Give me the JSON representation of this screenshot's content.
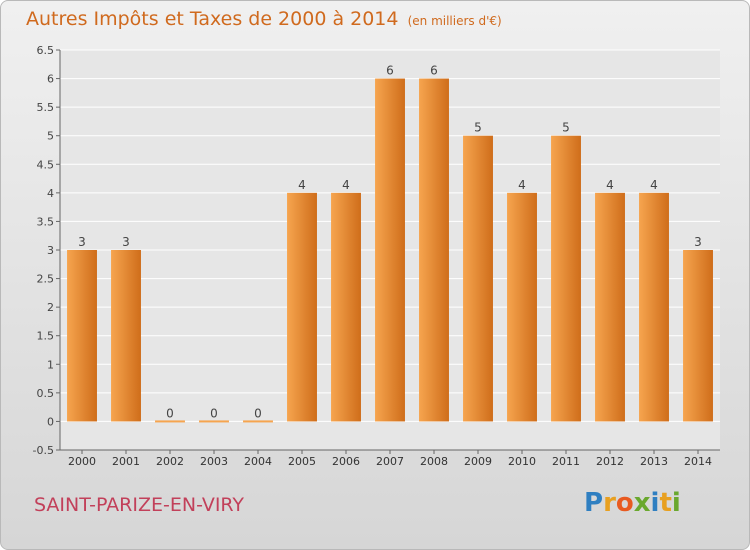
{
  "title": "Autres Impôts et Taxes de 2000 à 2014",
  "subtitle": "(en milliers d'€)",
  "commune": "SAINT-PARIZE-EN-VIRY",
  "logo": {
    "text": "Proxiti",
    "letters": [
      {
        "ch": "P",
        "color": "#2f7fc1"
      },
      {
        "ch": "r",
        "color": "#e8a020"
      },
      {
        "ch": "o",
        "color": "#e85a20"
      },
      {
        "ch": "x",
        "color": "#6aa82e"
      },
      {
        "ch": "i",
        "color": "#2f7fc1"
      },
      {
        "ch": "t",
        "color": "#e8a020"
      },
      {
        "ch": "i",
        "color": "#6aa82e"
      }
    ]
  },
  "colors": {
    "bar_light": "#f6a54f",
    "bar_dark": "#cf6d1a",
    "title": "#d06a1e",
    "commune": "#c2405a"
  },
  "chart_data": {
    "type": "bar",
    "categories": [
      "2000",
      "2001",
      "2002",
      "2003",
      "2004",
      "2005",
      "2006",
      "2007",
      "2008",
      "2009",
      "2010",
      "2011",
      "2012",
      "2013",
      "2014"
    ],
    "values": [
      3,
      3,
      0,
      0,
      0,
      4,
      4,
      6,
      6,
      5,
      4,
      5,
      4,
      4,
      3
    ],
    "value_labels": [
      "3",
      "3",
      "0",
      "0",
      "0",
      "4",
      "4",
      "6",
      "6",
      "5",
      "4",
      "5",
      "4",
      "4",
      "3"
    ],
    "ylim": [
      -0.5,
      6.5
    ],
    "yticks": [
      -0.5,
      0,
      0.5,
      1,
      1.5,
      2,
      2.5,
      3,
      3.5,
      4,
      4.5,
      5,
      5.5,
      6,
      6.5
    ],
    "ytick_labels": [
      "-0.5",
      "0",
      "0.5",
      "1",
      "1.5",
      "2",
      "2.5",
      "3",
      "3.5",
      "4",
      "4.5",
      "5",
      "5.5",
      "6",
      "6.5"
    ],
    "grid": true,
    "title": "Autres Impôts et Taxes de 2000 à 2014",
    "xlabel": "",
    "ylabel": ""
  }
}
